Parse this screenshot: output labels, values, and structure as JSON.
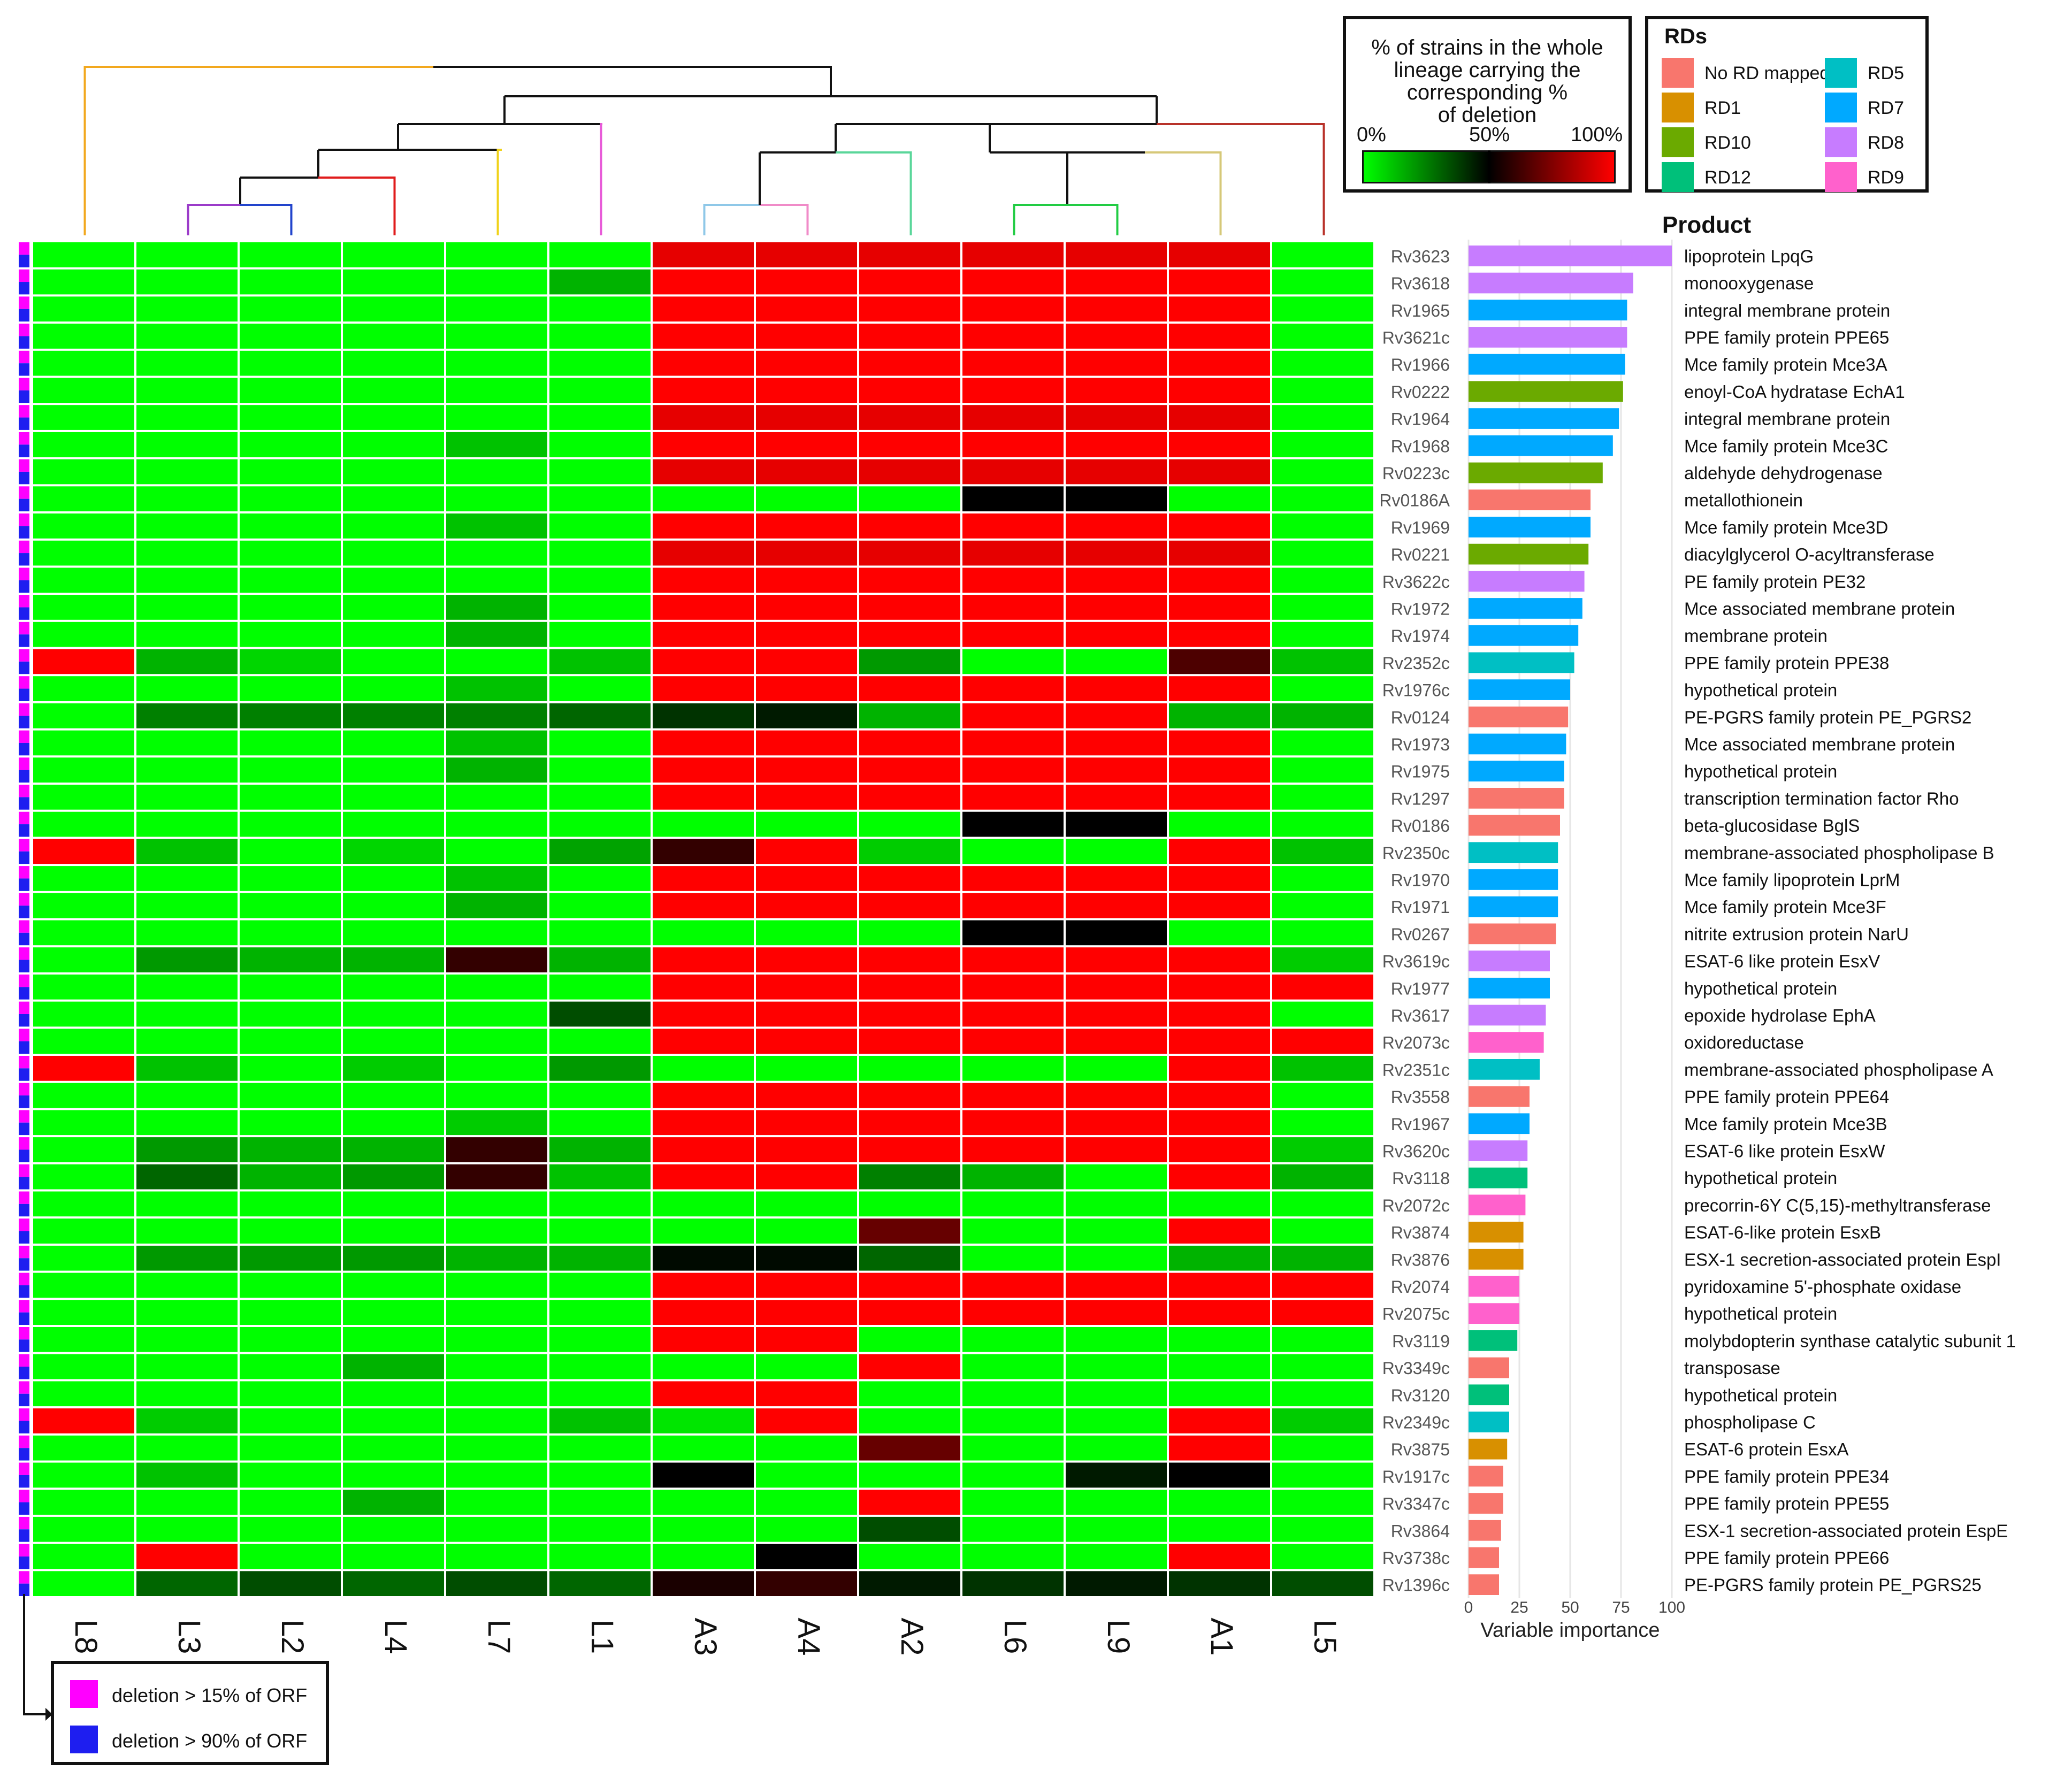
{
  "chart_data": {
    "type": "heatmap",
    "lineages": [
      "L8",
      "L3",
      "L2",
      "L4",
      "L7",
      "L1",
      "A3",
      "A4",
      "A2",
      "L6",
      "L9",
      "A1",
      "L5"
    ],
    "genes": [
      {
        "id": "Rv3623",
        "product": "lipoprotein LpqG",
        "rd": "RD8",
        "importance": 100
      },
      {
        "id": "Rv3618",
        "product": "monooxygenase",
        "rd": "RD8",
        "importance": 81
      },
      {
        "id": "Rv1965",
        "product": "integral membrane protein",
        "rd": "RD7",
        "importance": 78
      },
      {
        "id": "Rv3621c",
        "product": "PPE family protein PPE65",
        "rd": "RD8",
        "importance": 78
      },
      {
        "id": "Rv1966",
        "product": "Mce family protein Mce3A",
        "rd": "RD7",
        "importance": 77
      },
      {
        "id": "Rv0222",
        "product": "enoyl-CoA hydratase EchA1",
        "rd": "RD10",
        "importance": 76
      },
      {
        "id": "Rv1964",
        "product": "integral membrane protein",
        "rd": "RD7",
        "importance": 74
      },
      {
        "id": "Rv1968",
        "product": "Mce family protein Mce3C",
        "rd": "RD7",
        "importance": 71
      },
      {
        "id": "Rv0223c",
        "product": "aldehyde dehydrogenase",
        "rd": "RD10",
        "importance": 66
      },
      {
        "id": "Rv0186A",
        "product": "metallothionein",
        "rd": "No RD mapped",
        "importance": 60
      },
      {
        "id": "Rv1969",
        "product": "Mce family protein Mce3D",
        "rd": "RD7",
        "importance": 60
      },
      {
        "id": "Rv0221",
        "product": "diacylglycerol O-acyltransferase",
        "rd": "RD10",
        "importance": 59
      },
      {
        "id": "Rv3622c",
        "product": "PE family protein PE32",
        "rd": "RD8",
        "importance": 57
      },
      {
        "id": "Rv1972",
        "product": "Mce associated membrane protein",
        "rd": "RD7",
        "importance": 56
      },
      {
        "id": "Rv1974",
        "product": "membrane protein",
        "rd": "RD7",
        "importance": 54
      },
      {
        "id": "Rv2352c",
        "product": "PPE family protein PPE38",
        "rd": "RD5",
        "importance": 52
      },
      {
        "id": "Rv1976c",
        "product": "hypothetical protein",
        "rd": "RD7",
        "importance": 50
      },
      {
        "id": "Rv0124",
        "product": "PE-PGRS family protein PE_PGRS2",
        "rd": "No RD mapped",
        "importance": 49
      },
      {
        "id": "Rv1973",
        "product": "Mce associated membrane protein",
        "rd": "RD7",
        "importance": 48
      },
      {
        "id": "Rv1975",
        "product": "hypothetical protein",
        "rd": "RD7",
        "importance": 47
      },
      {
        "id": "Rv1297",
        "product": "transcription termination factor Rho",
        "rd": "No RD mapped",
        "importance": 47
      },
      {
        "id": "Rv0186",
        "product": "beta-glucosidase BglS",
        "rd": "No RD mapped",
        "importance": 45
      },
      {
        "id": "Rv2350c",
        "product": "membrane-associated phospholipase B",
        "rd": "RD5",
        "importance": 44
      },
      {
        "id": "Rv1970",
        "product": "Mce family lipoprotein LprM",
        "rd": "RD7",
        "importance": 44
      },
      {
        "id": "Rv1971",
        "product": "Mce family protein Mce3F",
        "rd": "RD7",
        "importance": 44
      },
      {
        "id": "Rv0267",
        "product": "nitrite extrusion protein NarU",
        "rd": "No RD mapped",
        "importance": 43
      },
      {
        "id": "Rv3619c",
        "product": "ESAT-6 like protein EsxV",
        "rd": "RD8",
        "importance": 40
      },
      {
        "id": "Rv1977",
        "product": "hypothetical protein",
        "rd": "RD7",
        "importance": 40
      },
      {
        "id": "Rv3617",
        "product": "epoxide hydrolase EphA",
        "rd": "RD8",
        "importance": 38
      },
      {
        "id": "Rv2073c",
        "product": "oxidoreductase",
        "rd": "RD9",
        "importance": 37
      },
      {
        "id": "Rv2351c",
        "product": "membrane-associated phospholipase A",
        "rd": "RD5",
        "importance": 35
      },
      {
        "id": "Rv3558",
        "product": "PPE family protein PPE64",
        "rd": "No RD mapped",
        "importance": 30
      },
      {
        "id": "Rv1967",
        "product": "Mce family protein Mce3B",
        "rd": "RD7",
        "importance": 30
      },
      {
        "id": "Rv3620c",
        "product": "ESAT-6 like protein EsxW",
        "rd": "RD8",
        "importance": 29
      },
      {
        "id": "Rv3118",
        "product": "hypothetical protein",
        "rd": "RD12",
        "importance": 29
      },
      {
        "id": "Rv2072c",
        "product": "precorrin-6Y C(5,15)-methyltransferase",
        "rd": "RD9",
        "importance": 28
      },
      {
        "id": "Rv3874",
        "product": "ESAT-6-like protein EsxB",
        "rd": "RD1",
        "importance": 27
      },
      {
        "id": "Rv3876",
        "product": "ESX-1 secretion-associated protein EspI",
        "rd": "RD1",
        "importance": 27
      },
      {
        "id": "Rv2074",
        "product": "pyridoxamine 5'-phosphate oxidase",
        "rd": "RD9",
        "importance": 25
      },
      {
        "id": "Rv2075c",
        "product": "hypothetical protein",
        "rd": "RD9",
        "importance": 25
      },
      {
        "id": "Rv3119",
        "product": "molybdopterin synthase catalytic subunit 1",
        "rd": "RD12",
        "importance": 24
      },
      {
        "id": "Rv3349c",
        "product": "transposase",
        "rd": "No RD mapped",
        "importance": 20
      },
      {
        "id": "Rv3120",
        "product": "hypothetical protein",
        "rd": "RD12",
        "importance": 20
      },
      {
        "id": "Rv2349c",
        "product": "phospholipase C",
        "rd": "RD5",
        "importance": 20
      },
      {
        "id": "Rv3875",
        "product": "ESAT-6 protein EsxA",
        "rd": "RD1",
        "importance": 19
      },
      {
        "id": "Rv1917c",
        "product": "PPE family protein PPE34",
        "rd": "No RD mapped",
        "importance": 17
      },
      {
        "id": "Rv3347c",
        "product": "PPE family protein PPE55",
        "rd": "No RD mapped",
        "importance": 17
      },
      {
        "id": "Rv3864",
        "product": "ESX-1 secretion-associated protein EspE",
        "rd": "No RD mapped",
        "importance": 16
      },
      {
        "id": "Rv3738c",
        "product": "PPE family protein PPE66",
        "rd": "No RD mapped",
        "importance": 15
      },
      {
        "id": "Rv1396c",
        "product": "PE-PGRS family protein PE_PGRS25",
        "rd": "No RD mapped",
        "importance": 15
      }
    ],
    "cell_levels_note": "percent of strains in lineage carrying the deletion (0=green,50=black,100=red)",
    "cells": [
      [
        0,
        0,
        0,
        0,
        0,
        0,
        95,
        95,
        95,
        95,
        95,
        95,
        0
      ],
      [
        0,
        0,
        0,
        0,
        0,
        15,
        100,
        100,
        100,
        100,
        100,
        100,
        0
      ],
      [
        0,
        0,
        0,
        0,
        0,
        0,
        100,
        100,
        100,
        100,
        100,
        100,
        0
      ],
      [
        0,
        0,
        0,
        0,
        0,
        0,
        100,
        100,
        100,
        100,
        100,
        100,
        0
      ],
      [
        0,
        0,
        0,
        0,
        0,
        0,
        100,
        100,
        100,
        100,
        100,
        100,
        0
      ],
      [
        0,
        0,
        0,
        0,
        0,
        0,
        100,
        100,
        100,
        100,
        100,
        100,
        0
      ],
      [
        0,
        0,
        0,
        0,
        0,
        0,
        95,
        95,
        95,
        95,
        95,
        95,
        0
      ],
      [
        0,
        0,
        0,
        0,
        12,
        0,
        100,
        100,
        100,
        100,
        100,
        100,
        0
      ],
      [
        0,
        0,
        0,
        0,
        0,
        0,
        95,
        95,
        95,
        95,
        95,
        95,
        0
      ],
      [
        0,
        0,
        0,
        0,
        0,
        0,
        0,
        0,
        0,
        50,
        50,
        0,
        0
      ],
      [
        0,
        0,
        0,
        0,
        12,
        0,
        100,
        100,
        100,
        100,
        100,
        100,
        0
      ],
      [
        0,
        0,
        0,
        0,
        0,
        0,
        95,
        95,
        95,
        95,
        95,
        95,
        0
      ],
      [
        0,
        0,
        0,
        0,
        0,
        0,
        100,
        100,
        100,
        100,
        100,
        100,
        0
      ],
      [
        0,
        0,
        0,
        0,
        15,
        0,
        100,
        100,
        100,
        100,
        100,
        100,
        0
      ],
      [
        0,
        0,
        0,
        0,
        15,
        0,
        100,
        100,
        100,
        100,
        100,
        100,
        0
      ],
      [
        100,
        15,
        8,
        0,
        0,
        12,
        100,
        100,
        20,
        0,
        0,
        65,
        12
      ],
      [
        0,
        0,
        0,
        0,
        12,
        0,
        100,
        100,
        100,
        100,
        100,
        100,
        0
      ],
      [
        0,
        25,
        25,
        25,
        25,
        30,
        40,
        45,
        15,
        100,
        100,
        15,
        15
      ],
      [
        0,
        0,
        0,
        0,
        12,
        0,
        100,
        100,
        100,
        100,
        100,
        100,
        0
      ],
      [
        0,
        0,
        0,
        0,
        15,
        0,
        100,
        100,
        100,
        100,
        100,
        100,
        0
      ],
      [
        0,
        0,
        0,
        0,
        0,
        0,
        100,
        100,
        100,
        100,
        100,
        100,
        0
      ],
      [
        0,
        0,
        0,
        0,
        0,
        0,
        0,
        0,
        0,
        50,
        50,
        0,
        0
      ],
      [
        100,
        12,
        0,
        8,
        0,
        18,
        60,
        100,
        10,
        0,
        0,
        100,
        12
      ],
      [
        0,
        0,
        0,
        0,
        12,
        0,
        100,
        100,
        100,
        100,
        100,
        100,
        0
      ],
      [
        0,
        0,
        0,
        0,
        15,
        0,
        100,
        100,
        100,
        100,
        100,
        100,
        0
      ],
      [
        0,
        0,
        0,
        0,
        0,
        0,
        0,
        0,
        0,
        50,
        50,
        0,
        0
      ],
      [
        0,
        20,
        15,
        15,
        60,
        15,
        100,
        100,
        100,
        100,
        100,
        100,
        10
      ],
      [
        0,
        0,
        0,
        0,
        0,
        0,
        100,
        100,
        100,
        100,
        100,
        100,
        100
      ],
      [
        0,
        0,
        0,
        0,
        0,
        35,
        100,
        100,
        100,
        100,
        100,
        100,
        0
      ],
      [
        0,
        0,
        0,
        0,
        0,
        0,
        100,
        100,
        100,
        100,
        100,
        100,
        100
      ],
      [
        100,
        12,
        0,
        10,
        0,
        20,
        0,
        0,
        0,
        0,
        0,
        100,
        12
      ],
      [
        0,
        0,
        0,
        0,
        0,
        0,
        100,
        100,
        100,
        100,
        100,
        100,
        0
      ],
      [
        0,
        0,
        0,
        0,
        10,
        0,
        100,
        100,
        100,
        100,
        100,
        100,
        0
      ],
      [
        0,
        20,
        15,
        15,
        60,
        15,
        100,
        100,
        100,
        100,
        100,
        100,
        10
      ],
      [
        0,
        30,
        15,
        20,
        60,
        12,
        100,
        100,
        25,
        15,
        0,
        100,
        15
      ],
      [
        0,
        0,
        0,
        0,
        0,
        0,
        0,
        0,
        0,
        0,
        0,
        0,
        0
      ],
      [
        0,
        0,
        0,
        0,
        0,
        0,
        0,
        0,
        70,
        0,
        0,
        100,
        0
      ],
      [
        0,
        20,
        20,
        20,
        15,
        15,
        48,
        48,
        30,
        0,
        0,
        15,
        15
      ],
      [
        0,
        0,
        0,
        0,
        0,
        0,
        100,
        100,
        100,
        100,
        100,
        100,
        100
      ],
      [
        0,
        0,
        0,
        0,
        0,
        0,
        100,
        100,
        100,
        100,
        100,
        100,
        100
      ],
      [
        0,
        0,
        0,
        0,
        0,
        0,
        100,
        100,
        0,
        0,
        0,
        0,
        0
      ],
      [
        0,
        0,
        0,
        15,
        0,
        0,
        0,
        0,
        100,
        0,
        0,
        0,
        0
      ],
      [
        0,
        0,
        0,
        0,
        0,
        0,
        100,
        100,
        0,
        0,
        0,
        0,
        0
      ],
      [
        100,
        10,
        0,
        0,
        0,
        12,
        5,
        100,
        0,
        0,
        0,
        100,
        10
      ],
      [
        0,
        0,
        0,
        0,
        0,
        0,
        0,
        0,
        70,
        0,
        0,
        100,
        0
      ],
      [
        0,
        12,
        0,
        0,
        0,
        0,
        50,
        0,
        0,
        0,
        45,
        50,
        0
      ],
      [
        0,
        0,
        0,
        15,
        0,
        0,
        0,
        0,
        100,
        0,
        0,
        0,
        0
      ],
      [
        0,
        0,
        0,
        0,
        0,
        0,
        0,
        0,
        35,
        0,
        0,
        0,
        0
      ],
      [
        0,
        100,
        0,
        0,
        0,
        0,
        0,
        50,
        0,
        0,
        0,
        100,
        0
      ],
      [
        0,
        30,
        35,
        30,
        35,
        30,
        55,
        60,
        45,
        40,
        45,
        40,
        35
      ]
    ],
    "xlabel": "Variable importance",
    "xticks": [
      0,
      25,
      50,
      75,
      100
    ],
    "xlim": [
      0,
      100
    ],
    "product_header": "Product"
  },
  "colors": {
    "No RD mapped": "#f8766d",
    "RD1": "#d89000",
    "RD10": "#6baa00",
    "RD12": "#00c07a",
    "RD5": "#00bfc4",
    "RD7": "#00a9ff",
    "RD8": "#c77cff",
    "RD9": "#ff61cc",
    "green": "#00ff00",
    "black": "#000000",
    "red": "#ff0000",
    "deletion15": "#ff00ff",
    "deletion90": "#1e1ef0"
  },
  "gradient_legend": {
    "title_lines": [
      "% of strains in the whole",
      "lineage carrying the",
      "corresponding %",
      "of deletion"
    ],
    "labels": [
      "0%",
      "50%",
      "100%"
    ]
  },
  "rd_legend": {
    "title": "RDs",
    "entries": [
      "No RD mapped",
      "RD1",
      "RD10",
      "RD12",
      "RD5",
      "RD7",
      "RD8",
      "RD9"
    ]
  },
  "deletion_legend": {
    "entries": [
      "deletion > 15% of ORF",
      "deletion > 90% of ORF"
    ]
  }
}
